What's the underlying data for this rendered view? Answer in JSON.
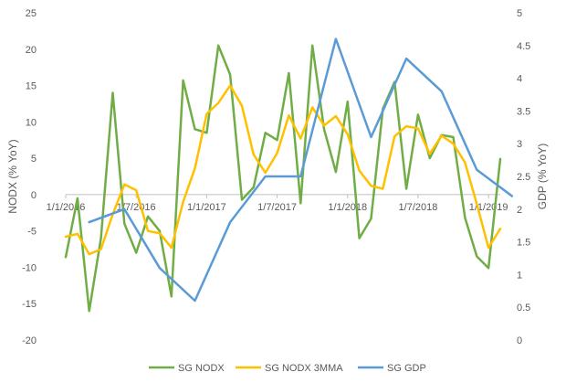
{
  "chart_data": {
    "type": "line",
    "title": "",
    "y_left": {
      "label": "NODX (% YoY)",
      "range": [
        -20,
        25
      ],
      "step": 5
    },
    "y_right": {
      "label": "GDP (% YoY)",
      "range": [
        0,
        5
      ],
      "step": 0.5
    },
    "x_axis": {
      "ticks": [
        "1/1/2016",
        "1/7/2016",
        "1/1/2017",
        "1/7/2017",
        "1/1/2018",
        "1/7/2018",
        "1/1/2019"
      ],
      "range": [
        "2016-01-01",
        "2019-02-01"
      ],
      "crosses_at": 0
    },
    "legend_position": "bottom",
    "gridlines": false,
    "series": [
      {
        "name": "SG NODX",
        "axis": "left",
        "color": "#70AD47",
        "points": [
          [
            "2016-01-01",
            -8.6
          ],
          [
            "2016-02-01",
            -0.5
          ],
          [
            "2016-03-01",
            -16.0
          ],
          [
            "2016-04-01",
            -6.0
          ],
          [
            "2016-05-01",
            14.0
          ],
          [
            "2016-06-01",
            -4.0
          ],
          [
            "2016-07-01",
            -8.0
          ],
          [
            "2016-08-01",
            -3.0
          ],
          [
            "2016-09-01",
            -5.0
          ],
          [
            "2016-10-01",
            -14.0
          ],
          [
            "2016-11-01",
            15.7
          ],
          [
            "2016-12-01",
            9.0
          ],
          [
            "2017-01-01",
            8.5
          ],
          [
            "2017-02-01",
            20.5
          ],
          [
            "2017-03-01",
            16.5
          ],
          [
            "2017-04-01",
            -0.7
          ],
          [
            "2017-05-01",
            1.0
          ],
          [
            "2017-06-01",
            8.5
          ],
          [
            "2017-07-01",
            7.5
          ],
          [
            "2017-08-01",
            16.7
          ],
          [
            "2017-09-01",
            -1.2
          ],
          [
            "2017-10-01",
            20.5
          ],
          [
            "2017-11-01",
            9.0
          ],
          [
            "2017-12-01",
            3.1
          ],
          [
            "2018-01-01",
            12.8
          ],
          [
            "2018-02-01",
            -6.0
          ],
          [
            "2018-03-01",
            -3.3
          ],
          [
            "2018-04-01",
            11.8
          ],
          [
            "2018-05-01",
            15.5
          ],
          [
            "2018-06-01",
            0.8
          ],
          [
            "2018-07-01",
            11.0
          ],
          [
            "2018-08-01",
            5.0
          ],
          [
            "2018-09-01",
            8.2
          ],
          [
            "2018-10-01",
            7.9
          ],
          [
            "2018-11-01",
            -3.2
          ],
          [
            "2018-12-01",
            -8.5
          ],
          [
            "2019-01-01",
            -10.1
          ],
          [
            "2019-02-01",
            4.9
          ]
        ]
      },
      {
        "name": "SG NODX 3MMA",
        "axis": "left",
        "color": "#FFC000",
        "points": [
          [
            "2016-01-01",
            -5.8
          ],
          [
            "2016-02-01",
            -5.4
          ],
          [
            "2016-03-01",
            -8.2
          ],
          [
            "2016-04-01",
            -7.5
          ],
          [
            "2016-05-01",
            -2.7
          ],
          [
            "2016-06-01",
            1.4
          ],
          [
            "2016-07-01",
            0.6
          ],
          [
            "2016-08-01",
            -5.0
          ],
          [
            "2016-09-01",
            -5.3
          ],
          [
            "2016-10-01",
            -7.3
          ],
          [
            "2016-11-01",
            -1.0
          ],
          [
            "2016-12-01",
            3.6
          ],
          [
            "2017-01-01",
            11.1
          ],
          [
            "2017-02-01",
            12.6
          ],
          [
            "2017-03-01",
            15.0
          ],
          [
            "2017-04-01",
            12.2
          ],
          [
            "2017-05-01",
            5.5
          ],
          [
            "2017-06-01",
            3.0
          ],
          [
            "2017-07-01",
            5.7
          ],
          [
            "2017-08-01",
            10.9
          ],
          [
            "2017-09-01",
            7.7
          ],
          [
            "2017-10-01",
            12.0
          ],
          [
            "2017-11-01",
            9.5
          ],
          [
            "2017-12-01",
            10.8
          ],
          [
            "2018-01-01",
            8.3
          ],
          [
            "2018-02-01",
            3.3
          ],
          [
            "2018-03-01",
            1.2
          ],
          [
            "2018-04-01",
            0.8
          ],
          [
            "2018-05-01",
            8.0
          ],
          [
            "2018-06-01",
            9.4
          ],
          [
            "2018-07-01",
            9.1
          ],
          [
            "2018-08-01",
            5.6
          ],
          [
            "2018-09-01",
            8.1
          ],
          [
            "2018-10-01",
            7.0
          ],
          [
            "2018-11-01",
            4.4
          ],
          [
            "2018-12-01",
            -1.3
          ],
          [
            "2019-01-01",
            -7.3
          ],
          [
            "2019-02-01",
            -4.7
          ]
        ]
      },
      {
        "name": "SG GDP",
        "axis": "right",
        "color": "#5B9BD5",
        "points": [
          [
            "2016-03-01",
            1.8
          ],
          [
            "2016-06-01",
            2.0
          ],
          [
            "2016-09-01",
            1.1
          ],
          [
            "2016-12-01",
            0.6
          ],
          [
            "2017-03-01",
            1.8
          ],
          [
            "2017-06-01",
            2.5
          ],
          [
            "2017-09-01",
            2.5
          ],
          [
            "2017-12-01",
            4.6
          ],
          [
            "2018-03-01",
            3.1
          ],
          [
            "2018-06-01",
            4.3
          ],
          [
            "2018-09-01",
            3.8
          ],
          [
            "2018-12-01",
            2.6
          ],
          [
            "2019-03-01",
            2.2
          ]
        ]
      }
    ]
  }
}
